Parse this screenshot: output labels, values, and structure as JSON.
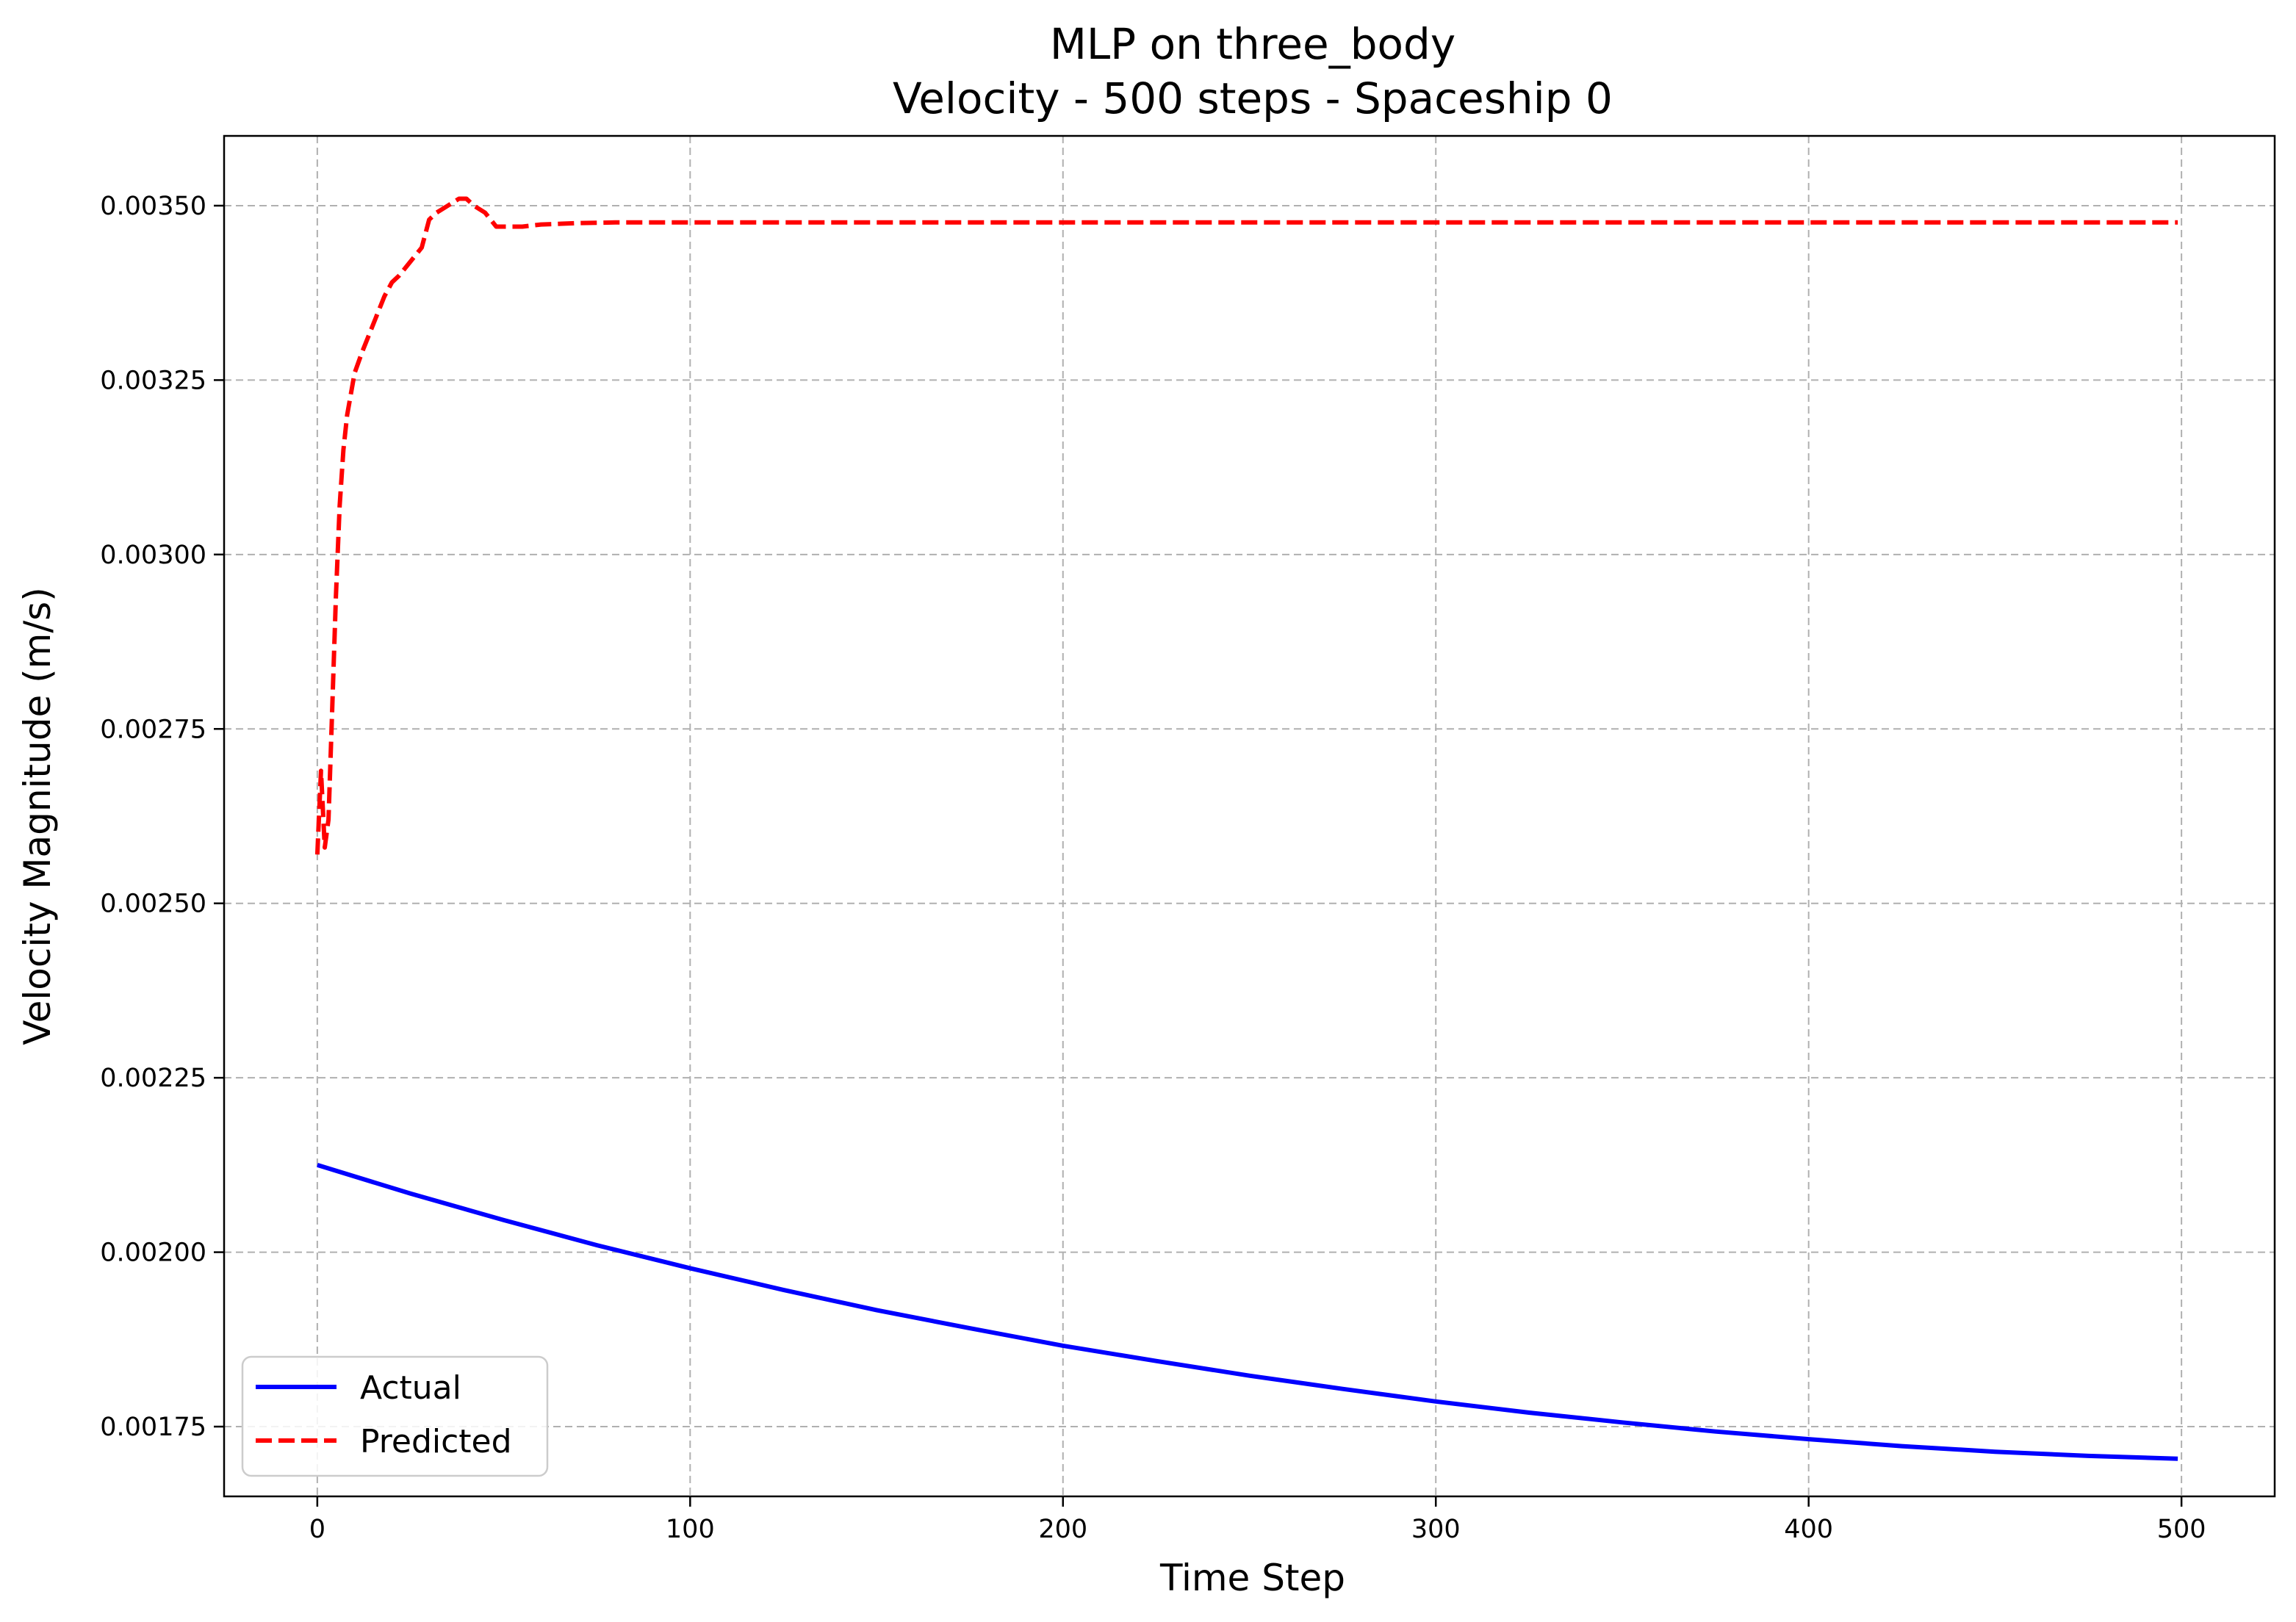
{
  "chart_data": {
    "type": "line",
    "title": "MLP on three_body",
    "subtitle": "Velocity - 500 steps - Spaceship 0",
    "xlabel": "Time Step",
    "ylabel": "Velocity Magnitude (m/s)",
    "xlim": [
      -25,
      525
    ],
    "ylim": [
      0.00165,
      0.0036
    ],
    "xticks": [
      0,
      100,
      200,
      300,
      400,
      500
    ],
    "xtick_labels": [
      "0",
      "100",
      "200",
      "300",
      "400",
      "500"
    ],
    "yticks": [
      0.00175,
      0.002,
      0.00225,
      0.0025,
      0.00275,
      0.003,
      0.00325,
      0.0035
    ],
    "ytick_labels": [
      "0.00175",
      "0.00200",
      "0.00225",
      "0.00250",
      "0.00275",
      "0.00300",
      "0.00325",
      "0.00350"
    ],
    "grid": true,
    "legend_position": "lower-left",
    "series": [
      {
        "name": "Actual",
        "color": "#0000ff",
        "style": "solid",
        "x": [
          0,
          25,
          50,
          75,
          100,
          125,
          150,
          175,
          200,
          225,
          250,
          275,
          300,
          325,
          350,
          375,
          400,
          425,
          450,
          475,
          499
        ],
        "y": [
          0.002125,
          0.002084,
          0.002046,
          0.00201,
          0.001977,
          0.001946,
          0.001917,
          0.001891,
          0.001866,
          0.001844,
          0.001823,
          0.001804,
          0.001786,
          0.00177,
          0.001756,
          0.001743,
          0.001732,
          0.001722,
          0.001714,
          0.001708,
          0.001704
        ]
      },
      {
        "name": "Predicted",
        "color": "#ff0000",
        "style": "dashed",
        "x": [
          0,
          1,
          2,
          3,
          4,
          5,
          6,
          7,
          8,
          10,
          12,
          15,
          18,
          20,
          22,
          25,
          28,
          30,
          32,
          35,
          38,
          40,
          42,
          45,
          48,
          50,
          55,
          60,
          70,
          80,
          100,
          150,
          200,
          250,
          300,
          350,
          400,
          450,
          499
        ],
        "y": [
          0.00257,
          0.00269,
          0.00258,
          0.00262,
          0.00278,
          0.00294,
          0.00307,
          0.00315,
          0.0032,
          0.00326,
          0.00329,
          0.00333,
          0.00337,
          0.00339,
          0.0034,
          0.00342,
          0.00344,
          0.00348,
          0.00349,
          0.0035,
          0.00351,
          0.00351,
          0.0035,
          0.00349,
          0.00347,
          0.00347,
          0.00347,
          0.003473,
          0.003475,
          0.003476,
          0.003476,
          0.003476,
          0.003476,
          0.003476,
          0.003476,
          0.003476,
          0.003476,
          0.003476,
          0.003476
        ]
      }
    ]
  }
}
